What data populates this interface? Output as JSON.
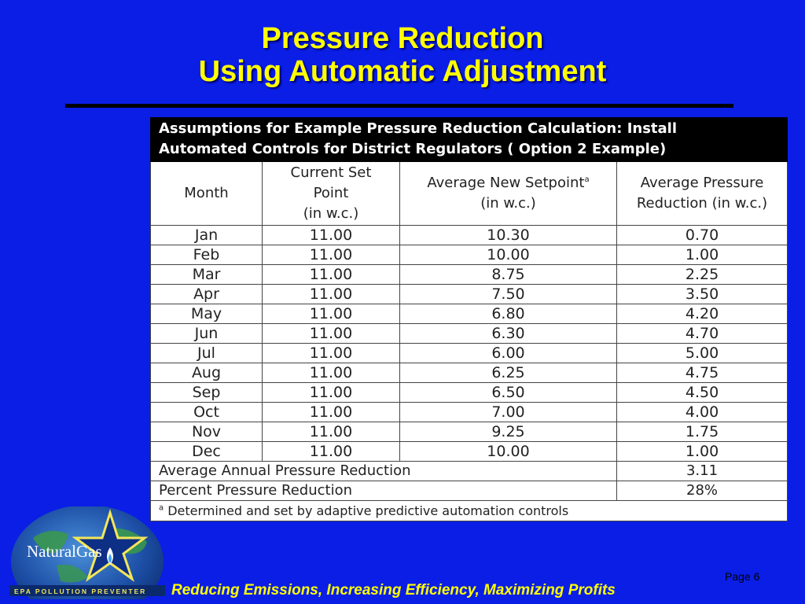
{
  "slide": {
    "title_line1": "Pressure Reduction",
    "title_line2": "Using Automatic Adjustment",
    "footer": "Reducing Emissions, Increasing Efficiency, Maximizing Profits",
    "page": "Page 6",
    "logo_text": "NaturalGas",
    "logo_subtitle": "EPA  POLLUTION  PREVENTER"
  },
  "table": {
    "caption_line1": "Assumptions for Example Pressure Reduction Calculation: Install",
    "caption_line2": "Automated Controls for District Regulators ( Option 2 Example)",
    "headers": {
      "month": "Month",
      "current_l1": "Current Set",
      "current_l2": "Point",
      "current_l3": "(in w.c.)",
      "new_l1": "Average New Setpoint",
      "new_sup": "a",
      "new_l2": "(in w.c.)",
      "red_l1": "Average Pressure",
      "red_l2": "Reduction (in w.c.)"
    },
    "rows": [
      [
        "Jan",
        "11.00",
        "10.30",
        "0.70"
      ],
      [
        "Feb",
        "11.00",
        "10.00",
        "1.00"
      ],
      [
        "Mar",
        "11.00",
        "8.75",
        "2.25"
      ],
      [
        "Apr",
        "11.00",
        "7.50",
        "3.50"
      ],
      [
        "May",
        "11.00",
        "6.80",
        "4.20"
      ],
      [
        "Jun",
        "11.00",
        "6.30",
        "4.70"
      ],
      [
        "Jul",
        "11.00",
        "6.00",
        "5.00"
      ],
      [
        "Aug",
        "11.00",
        "6.25",
        "4.75"
      ],
      [
        "Sep",
        "11.00",
        "6.50",
        "4.50"
      ],
      [
        "Oct",
        "11.00",
        "7.00",
        "4.00"
      ],
      [
        "Nov",
        "11.00",
        "9.25",
        "1.75"
      ],
      [
        "Dec",
        "11.00",
        "10.00",
        "1.00"
      ]
    ],
    "avg_label": "Average Annual Pressure Reduction",
    "avg_value": "3.11",
    "pct_label": "Percent Pressure Reduction",
    "pct_value": "28%",
    "footnote_sup": "a",
    "footnote_text": " Determined and set by adaptive predictive automation controls"
  },
  "colors": {
    "background": "#0a1ee6",
    "title": "#ffff00",
    "footer": "#ffff00"
  }
}
